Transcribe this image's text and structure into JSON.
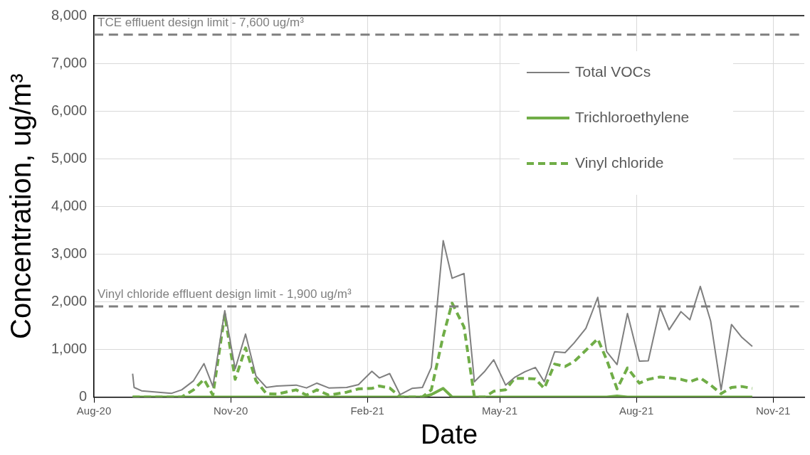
{
  "chart_data": {
    "type": "line",
    "xlabel": "Date",
    "ylabel": "Concentration, ug/m³",
    "x": [
      "2020-08-27",
      "2020-08-28",
      "2020-09-02",
      "2020-09-22",
      "2020-09-29",
      "2020-10-07",
      "2020-10-14",
      "2020-10-20",
      "2020-10-28",
      "2020-11-04",
      "2020-11-11",
      "2020-11-18",
      "2020-11-25",
      "2020-12-02",
      "2020-12-15",
      "2020-12-22",
      "2020-12-29",
      "2021-01-06",
      "2021-01-18",
      "2021-01-26",
      "2021-02-04",
      "2021-02-09",
      "2021-02-16",
      "2021-02-23",
      "2021-03-03",
      "2021-03-10",
      "2021-03-16",
      "2021-03-24",
      "2021-03-30",
      "2021-04-07",
      "2021-04-14",
      "2021-04-21",
      "2021-04-27",
      "2021-05-05",
      "2021-05-11",
      "2021-05-18",
      "2021-05-25",
      "2021-05-31",
      "2021-06-07",
      "2021-06-14",
      "2021-06-20",
      "2021-06-28",
      "2021-07-06",
      "2021-07-12",
      "2021-07-19",
      "2021-07-26",
      "2021-08-03",
      "2021-08-09",
      "2021-08-17",
      "2021-08-23",
      "2021-08-31",
      "2021-09-06",
      "2021-09-13",
      "2021-09-20",
      "2021-09-27",
      "2021-10-04",
      "2021-10-11",
      "2021-10-18"
    ],
    "series": [
      {
        "name": "Total VOCs",
        "color": "#7f7f7f",
        "line_style": "solid",
        "values": [
          490,
          200,
          130,
          75,
          150,
          340,
          700,
          220,
          1810,
          590,
          1320,
          440,
          200,
          230,
          250,
          190,
          290,
          190,
          200,
          260,
          540,
          400,
          490,
          50,
          180,
          200,
          620,
          3280,
          2490,
          2590,
          320,
          540,
          780,
          250,
          410,
          530,
          620,
          320,
          950,
          930,
          1130,
          1440,
          2090,
          950,
          680,
          1750,
          750,
          760,
          1870,
          1410,
          1790,
          1620,
          2320,
          1590,
          150,
          1520,
          1250,
          1060
        ]
      },
      {
        "name": "Trichloroethylene",
        "color": "#70ad47",
        "line_style": "solid",
        "values": [
          0,
          0,
          0,
          0,
          0,
          0,
          0,
          0,
          0,
          0,
          0,
          0,
          0,
          0,
          0,
          0,
          0,
          0,
          0,
          0,
          0,
          0,
          0,
          0,
          0,
          0,
          50,
          180,
          0,
          0,
          0,
          0,
          0,
          0,
          0,
          0,
          0,
          0,
          0,
          0,
          0,
          0,
          0,
          0,
          20,
          0,
          0,
          0,
          0,
          0,
          0,
          0,
          0,
          0,
          0,
          0,
          0,
          0
        ]
      },
      {
        "name": "Vinyl chloride",
        "color": "#70ad47",
        "line_style": "dashed",
        "values": [
          0,
          0,
          0,
          0,
          0,
          150,
          370,
          40,
          1730,
          370,
          1030,
          340,
          70,
          60,
          150,
          40,
          150,
          40,
          100,
          170,
          180,
          230,
          190,
          0,
          0,
          0,
          150,
          1280,
          1970,
          1470,
          0,
          0,
          120,
          150,
          390,
          390,
          380,
          180,
          690,
          640,
          740,
          980,
          1220,
          780,
          170,
          610,
          290,
          370,
          420,
          400,
          370,
          320,
          400,
          250,
          70,
          200,
          220,
          180
        ]
      }
    ],
    "xlim": [
      "2020-08-01",
      "2021-11-22"
    ],
    "xticks": [
      {
        "value": "2020-08-01",
        "label": "Aug-20"
      },
      {
        "value": "2020-11-01",
        "label": "Nov-20"
      },
      {
        "value": "2021-02-01",
        "label": "Feb-21"
      },
      {
        "value": "2021-05-01",
        "label": "May-21"
      },
      {
        "value": "2021-08-01",
        "label": "Aug-21"
      },
      {
        "value": "2021-11-01",
        "label": "Nov-21"
      }
    ],
    "ylim": [
      0,
      8000
    ],
    "yticks": [
      0,
      {
        "value": 1000,
        "label": "1,000"
      },
      {
        "value": 2000,
        "label": "2,000"
      },
      {
        "value": 3000,
        "label": "3,000"
      },
      {
        "value": 4000,
        "label": "4,000"
      },
      {
        "value": 5000,
        "label": "5,000"
      },
      {
        "value": 6000,
        "label": "6,000"
      },
      {
        "value": 7000,
        "label": "7,000"
      },
      {
        "value": 8000,
        "label": "8,000"
      }
    ],
    "ref_lines": [
      {
        "axis": "y",
        "value": 7600,
        "label": "TCE effluent design limit - 7,600 ug/m³",
        "color": "#7f7f7f",
        "line_style": "dashed"
      },
      {
        "axis": "y",
        "value": 1900,
        "label": "Vinyl chloride effluent design limit - 1,900 ug/m³",
        "color": "#7f7f7f",
        "line_style": "dashed"
      }
    ],
    "grid": true,
    "legend": "top right",
    "marker": "none"
  }
}
